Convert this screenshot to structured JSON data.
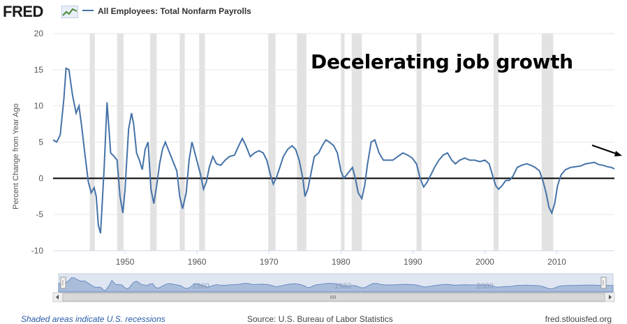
{
  "brand": {
    "logo_text": "FRED",
    "logo_icon": "line-graph-icon"
  },
  "legend": {
    "series_name": "All Employees: Total Nonfarm Payrolls",
    "color": "#4572a7"
  },
  "annotation": "Decelerating job growth",
  "footer": {
    "recession_note": "Shaded areas indicate U.S. recessions",
    "source": "Source: U.S. Bureau of Labor Statistics",
    "site": "fred.stlouisfed.org"
  },
  "navigator": {
    "tick_labels": [
      "1960",
      "1980",
      "2000"
    ],
    "handle_icon": "grip-icon",
    "scroll_left_icon": "arrow-left-icon",
    "scroll_right_icon": "arrow-right-icon",
    "scroll_grip_icon": "scroll-grip-icon"
  },
  "chart_data": {
    "type": "line",
    "title": "All Employees: Total Nonfarm Payrolls",
    "xlabel": "",
    "ylabel": "Percent Change from Year Ago",
    "xlim": [
      1940,
      2018
    ],
    "ylim": [
      -10,
      20
    ],
    "x_ticks": [
      1950,
      1960,
      1970,
      1980,
      1990,
      2000,
      2010
    ],
    "y_ticks": [
      -10,
      -5,
      0,
      5,
      10,
      15,
      20
    ],
    "grid": "horizontal",
    "zero_line": true,
    "colors": {
      "line": "#4572a7",
      "recession": "#e2e2e2",
      "grid": "#e6e6e6"
    },
    "recessions": [
      [
        1945.1,
        1945.8
      ],
      [
        1948.9,
        1949.8
      ],
      [
        1953.5,
        1954.4
      ],
      [
        1957.6,
        1958.3
      ],
      [
        1960.3,
        1961.1
      ],
      [
        1969.9,
        1970.9
      ],
      [
        1973.9,
        1975.2
      ],
      [
        1980.0,
        1980.5
      ],
      [
        1981.5,
        1982.9
      ],
      [
        1990.5,
        1991.2
      ],
      [
        2001.2,
        2001.9
      ],
      [
        2007.9,
        2009.5
      ]
    ],
    "series": [
      {
        "name": "All Employees: Total Nonfarm Payrolls",
        "x": [
          1940.0,
          1940.5,
          1941.0,
          1941.5,
          1941.8,
          1942.2,
          1942.7,
          1943.2,
          1943.6,
          1944.0,
          1944.4,
          1944.9,
          1945.3,
          1945.7,
          1946.0,
          1946.3,
          1946.6,
          1946.8,
          1947.1,
          1947.5,
          1948.0,
          1948.5,
          1948.9,
          1949.3,
          1949.7,
          1950.0,
          1950.5,
          1950.9,
          1951.2,
          1951.6,
          1952.0,
          1952.4,
          1952.8,
          1953.2,
          1953.6,
          1954.0,
          1954.4,
          1954.8,
          1955.2,
          1955.6,
          1956.0,
          1956.6,
          1957.2,
          1957.6,
          1958.0,
          1958.5,
          1958.9,
          1959.3,
          1959.7,
          1960.1,
          1960.5,
          1960.9,
          1961.3,
          1961.7,
          1962.2,
          1962.7,
          1963.3,
          1963.9,
          1964.5,
          1965.2,
          1965.8,
          1966.3,
          1966.8,
          1967.4,
          1968.0,
          1968.6,
          1969.2,
          1969.7,
          1970.2,
          1970.6,
          1971.0,
          1971.5,
          1972.0,
          1972.6,
          1973.2,
          1973.7,
          1974.2,
          1974.7,
          1975.0,
          1975.4,
          1975.8,
          1976.3,
          1976.9,
          1977.4,
          1977.9,
          1978.4,
          1979.0,
          1979.5,
          1980.0,
          1980.4,
          1980.8,
          1981.2,
          1981.6,
          1982.0,
          1982.4,
          1982.9,
          1983.3,
          1983.7,
          1984.2,
          1984.7,
          1985.3,
          1985.9,
          1986.5,
          1987.2,
          1987.9,
          1988.6,
          1989.3,
          1989.9,
          1990.5,
          1991.0,
          1991.5,
          1992.0,
          1992.5,
          1993.0,
          1993.6,
          1994.2,
          1994.8,
          1995.4,
          1995.9,
          1996.5,
          1997.2,
          1997.9,
          1998.6,
          1999.3,
          2000.0,
          2000.6,
          2001.1,
          2001.5,
          2001.9,
          2002.4,
          2002.9,
          2003.4,
          2003.9,
          2004.5,
          2005.1,
          2005.8,
          2006.4,
          2007.0,
          2007.6,
          2008.1,
          2008.5,
          2008.9,
          2009.3,
          2009.7,
          2010.1,
          2010.6,
          2011.2,
          2011.9,
          2012.6,
          2013.3,
          2014.0,
          2014.6,
          2015.2,
          2015.8,
          2016.4,
          2017.0,
          2017.6,
          2018.0
        ],
        "y": [
          5.3,
          5.0,
          6.0,
          11.0,
          15.2,
          15.0,
          11.5,
          9.0,
          10.0,
          7.0,
          3.5,
          -0.5,
          -2.0,
          -1.3,
          -2.5,
          -6.5,
          -7.6,
          -4.0,
          1.5,
          10.5,
          3.5,
          3.0,
          2.5,
          -2.5,
          -4.8,
          -1.5,
          6.8,
          9.0,
          7.5,
          3.5,
          2.5,
          1.2,
          4.0,
          5.0,
          -1.5,
          -3.5,
          -1.0,
          2.0,
          4.0,
          5.0,
          4.0,
          2.5,
          1.0,
          -2.5,
          -4.2,
          -2.0,
          2.5,
          5.0,
          3.5,
          2.0,
          0.5,
          -1.5,
          -0.5,
          1.5,
          3.0,
          2.0,
          1.8,
          2.5,
          3.0,
          3.2,
          4.5,
          5.5,
          4.5,
          3.0,
          3.5,
          3.8,
          3.5,
          2.5,
          0.5,
          -0.8,
          0.0,
          1.5,
          3.0,
          4.0,
          4.5,
          4.0,
          2.5,
          0.0,
          -2.5,
          -1.5,
          0.5,
          3.0,
          3.5,
          4.5,
          5.3,
          5.0,
          4.5,
          3.5,
          1.0,
          0.0,
          0.5,
          1.0,
          1.5,
          0.0,
          -2.0,
          -2.8,
          -1.0,
          2.0,
          5.0,
          5.3,
          3.5,
          2.5,
          2.5,
          2.5,
          3.0,
          3.5,
          3.2,
          2.8,
          2.0,
          0.0,
          -1.2,
          -0.5,
          0.5,
          1.5,
          2.5,
          3.2,
          3.5,
          2.5,
          2.0,
          2.5,
          2.8,
          2.5,
          2.5,
          2.3,
          2.5,
          2.0,
          0.3,
          -1.0,
          -1.5,
          -1.0,
          -0.3,
          -0.3,
          0.3,
          1.5,
          1.8,
          2.0,
          1.8,
          1.5,
          1.0,
          -0.5,
          -2.0,
          -4.0,
          -4.8,
          -3.5,
          -1.0,
          0.5,
          1.2,
          1.5,
          1.6,
          1.7,
          2.0,
          2.1,
          2.2,
          1.9,
          1.8,
          1.6,
          1.5,
          1.3
        ]
      }
    ]
  }
}
